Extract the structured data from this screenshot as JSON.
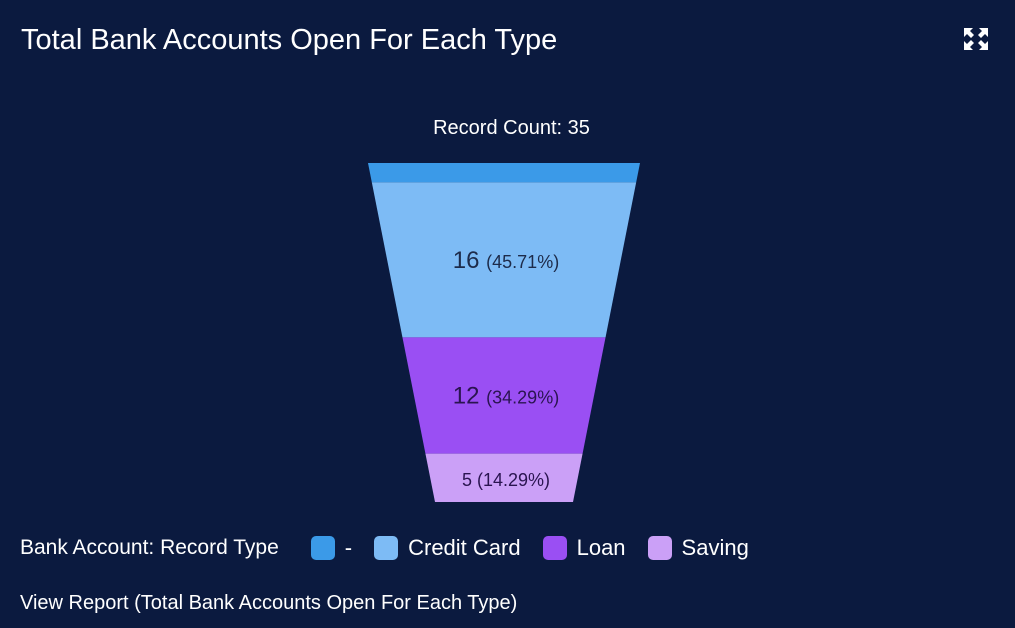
{
  "header": {
    "title": "Total Bank Accounts Open For Each Type",
    "expand_icon": "expand-icon"
  },
  "chart_data": {
    "type": "funnel",
    "title": "Record Count: 35",
    "total": 35,
    "legend_title": "Bank Account: Record Type",
    "segments": [
      {
        "name": "-",
        "value": 2,
        "label": "",
        "color": "#3b9ae8"
      },
      {
        "name": "Credit Card",
        "value": 16,
        "label": "16",
        "percent": "(45.71%)",
        "color": "#7dbbf5",
        "text_color": "#1d2b4a"
      },
      {
        "name": "Loan",
        "value": 12,
        "label": "12",
        "percent": "(34.29%)",
        "color": "#9a4ff3",
        "text_color": "#2a1450"
      },
      {
        "name": "Saving",
        "value": 5,
        "label": "5",
        "percent": "(14.29%)",
        "color": "#cba0f7",
        "text_color": "#2a1450"
      }
    ]
  },
  "footer": {
    "view_report": "View Report (Total Bank Accounts Open For Each Type)"
  }
}
